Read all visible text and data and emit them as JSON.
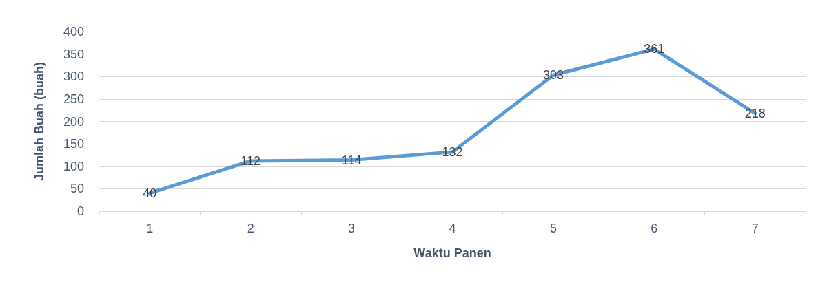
{
  "chart_data": {
    "type": "line",
    "xlabel": "Waktu Panen",
    "ylabel": "Jumlah Buah (buah)",
    "categories": [
      "1",
      "2",
      "3",
      "4",
      "5",
      "6",
      "7"
    ],
    "series": [
      {
        "color": "#5b9bd5",
        "values": [
          40,
          112,
          114,
          132,
          303,
          361,
          218
        ]
      }
    ],
    "ylim": [
      0,
      400
    ],
    "yticks": [
      0,
      50,
      100,
      150,
      200,
      250,
      300,
      350,
      400
    ],
    "grid": "y",
    "marker": "none",
    "line_style": "solid",
    "data_labels": true
  }
}
